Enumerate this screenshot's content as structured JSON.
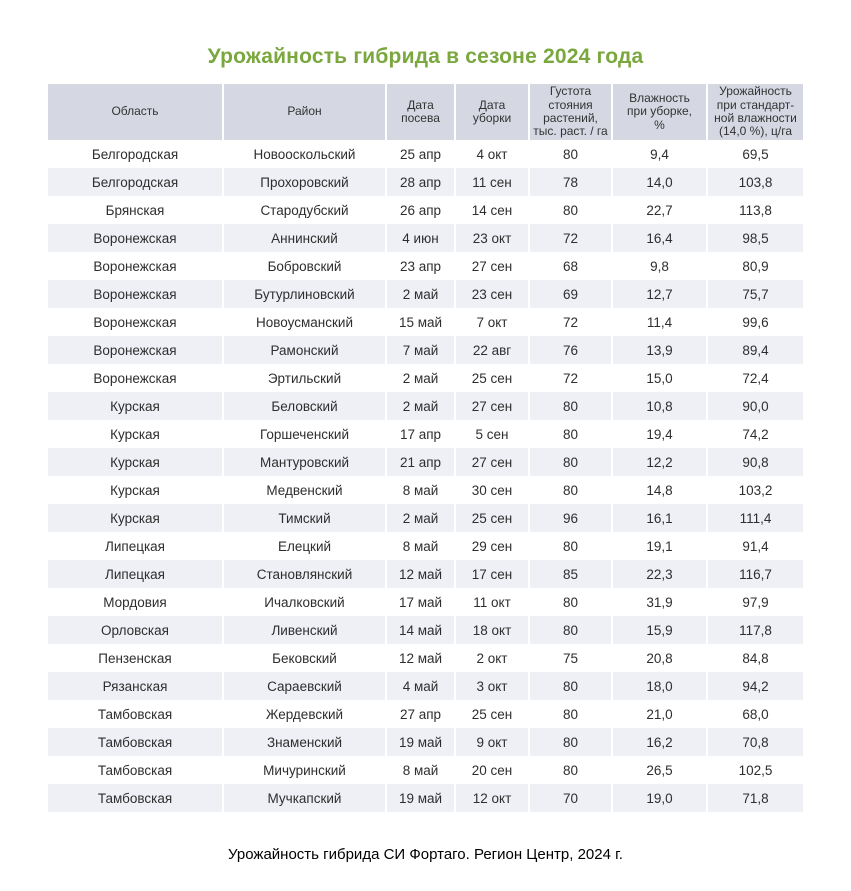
{
  "title": "Урожайность гибрида в сезоне 2024 года",
  "caption": "Урожайность гибрида СИ Фортаго. Регион Центр, 2024 г.",
  "colors": {
    "title_green": "#7aa73e",
    "header_bg": "#d5d8e2",
    "row_alt_bg": "#eef0f6",
    "row_bg": "#ffffff",
    "text": "#2e2e2e"
  },
  "table": {
    "columns": [
      {
        "label": "Область"
      },
      {
        "label": "Район"
      },
      {
        "label": "Дата\nпосева"
      },
      {
        "label": "Дата\nуборки"
      },
      {
        "label": "Густота\nстояния\nрастений,\nтыс. раст. / га"
      },
      {
        "label": "Влажность\nпри уборке,\n%"
      },
      {
        "label": "Урожайность\nпри стандарт-\nной влажности\n(14,0 %), ц/га"
      }
    ],
    "rows": [
      [
        "Белгородская",
        "Новооскольский",
        "25 апр",
        "4 окт",
        "80",
        "9,4",
        "69,5"
      ],
      [
        "Белгородская",
        "Прохоровский",
        "28 апр",
        "11 сен",
        "78",
        "14,0",
        "103,8"
      ],
      [
        "Брянская",
        "Стародубский",
        "26 апр",
        "14 сен",
        "80",
        "22,7",
        "113,8"
      ],
      [
        "Воронежская",
        "Аннинский",
        "4 июн",
        "23 окт",
        "72",
        "16,4",
        "98,5"
      ],
      [
        "Воронежская",
        "Бобровский",
        "23 апр",
        "27 сен",
        "68",
        "9,8",
        "80,9"
      ],
      [
        "Воронежская",
        "Бутурлиновский",
        "2 май",
        "23 сен",
        "69",
        "12,7",
        "75,7"
      ],
      [
        "Воронежская",
        "Новоусманский",
        "15 май",
        "7 окт",
        "72",
        "11,4",
        "99,6"
      ],
      [
        "Воронежская",
        "Рамонский",
        "7 май",
        "22 авг",
        "76",
        "13,9",
        "89,4"
      ],
      [
        "Воронежская",
        "Эртильский",
        "2 май",
        "25 сен",
        "72",
        "15,0",
        "72,4"
      ],
      [
        "Курская",
        "Беловский",
        "2 май",
        "27 сен",
        "80",
        "10,8",
        "90,0"
      ],
      [
        "Курская",
        "Горшеченский",
        "17 апр",
        "5 сен",
        "80",
        "19,4",
        "74,2"
      ],
      [
        "Курская",
        "Мантуровский",
        "21 апр",
        "27 сен",
        "80",
        "12,2",
        "90,8"
      ],
      [
        "Курская",
        "Медвенский",
        "8 май",
        "30 сен",
        "80",
        "14,8",
        "103,2"
      ],
      [
        "Курская",
        "Тимский",
        "2 май",
        "25 сен",
        "96",
        "16,1",
        "111,4"
      ],
      [
        "Липецкая",
        "Елецкий",
        "8 май",
        "29 сен",
        "80",
        "19,1",
        "91,4"
      ],
      [
        "Липецкая",
        "Становлянский",
        "12 май",
        "17 сен",
        "85",
        "22,3",
        "116,7"
      ],
      [
        "Мордовия",
        "Ичалковский",
        "17 май",
        "11 окт",
        "80",
        "31,9",
        "97,9"
      ],
      [
        "Орловская",
        "Ливенский",
        "14 май",
        "18 окт",
        "80",
        "15,9",
        "117,8"
      ],
      [
        "Пензенская",
        "Бековский",
        "12 май",
        "2 окт",
        "75",
        "20,8",
        "84,8"
      ],
      [
        "Рязанская",
        "Сараевский",
        "4 май",
        "3 окт",
        "80",
        "18,0",
        "94,2"
      ],
      [
        "Тамбовская",
        "Жердевский",
        "27 апр",
        "25 сен",
        "80",
        "21,0",
        "68,0"
      ],
      [
        "Тамбовская",
        "Знаменский",
        "19 май",
        "9 окт",
        "80",
        "16,2",
        "70,8"
      ],
      [
        "Тамбовская",
        "Мичуринский",
        "8 май",
        "20 сен",
        "80",
        "26,5",
        "102,5"
      ],
      [
        "Тамбовская",
        "Мучкапский",
        "19 май",
        "12 окт",
        "70",
        "19,0",
        "71,8"
      ]
    ]
  }
}
